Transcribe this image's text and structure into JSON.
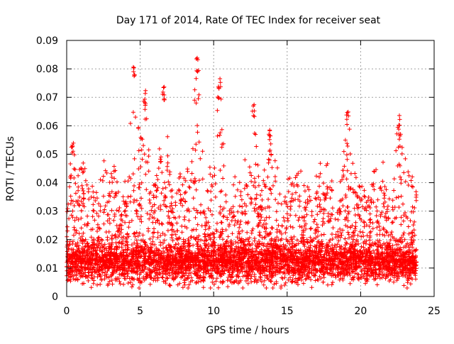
{
  "chart_data": {
    "type": "scatter",
    "title": "Day 171 of 2014, Rate Of TEC Index for receiver seat",
    "xlabel": "GPS time / hours",
    "ylabel": "ROTI / TECUs",
    "xlim": [
      0,
      25
    ],
    "ylim": [
      0,
      0.09
    ],
    "x_ticks": [
      0,
      5,
      10,
      15,
      20,
      25
    ],
    "x_tick_labels": [
      "0",
      "5",
      "10",
      "15",
      "20",
      "25"
    ],
    "y_ticks": [
      0,
      0.01,
      0.02,
      0.03,
      0.04,
      0.05,
      0.06,
      0.07,
      0.08,
      0.09
    ],
    "y_tick_labels": [
      "0",
      "0.01",
      "0.02",
      "0.03",
      "0.04",
      "0.05",
      "0.06",
      "0.07",
      "0.08",
      "0.09"
    ],
    "grid": true,
    "marker": "+",
    "marker_color": "#ff0000",
    "series": [
      {
        "name": "ROTI",
        "approx_baseline": 0.012,
        "x_range": [
          0,
          23.8
        ],
        "notable_peaks": [
          {
            "x": 4.6,
            "y": 0.083
          },
          {
            "x": 8.9,
            "y": 0.084
          },
          {
            "x": 10.4,
            "y": 0.078
          },
          {
            "x": 5.3,
            "y": 0.073
          },
          {
            "x": 6.6,
            "y": 0.075
          },
          {
            "x": 12.7,
            "y": 0.068
          },
          {
            "x": 19.1,
            "y": 0.065
          },
          {
            "x": 22.6,
            "y": 0.064
          },
          {
            "x": 13.8,
            "y": 0.06
          },
          {
            "x": 0.4,
            "y": 0.055
          }
        ]
      }
    ]
  }
}
